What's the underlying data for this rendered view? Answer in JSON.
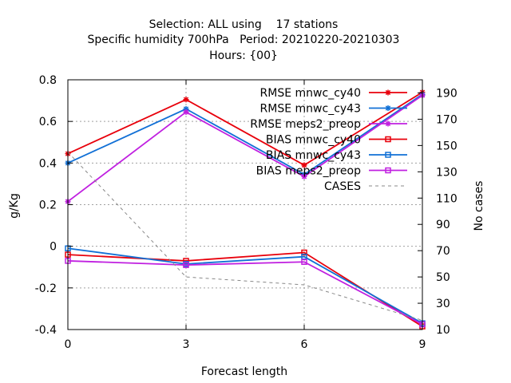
{
  "chart_data": {
    "type": "line",
    "title_lines": [
      "Selection: ALL using    17 stations",
      "Specific humidity 700hPa   Period: 20210220-20210303",
      "Hours: {00}"
    ],
    "xlabel": "Forecast length",
    "ylabel": "g/Kg",
    "y2label": "No cases",
    "x": [
      0,
      3,
      6,
      9
    ],
    "xlim": [
      0,
      9
    ],
    "ylim": [
      -0.4,
      0.8
    ],
    "y2lim": [
      10,
      200
    ],
    "xticks": [
      "0",
      "3",
      "6",
      "9"
    ],
    "yticks": [
      "0.8",
      "0.6",
      "0.4",
      "0.2",
      "0",
      "-0.2",
      "-0.4"
    ],
    "ytick_values": [
      0.8,
      0.6,
      0.4,
      0.2,
      0,
      -0.2,
      -0.4
    ],
    "y2ticks": [
      "190",
      "170",
      "150",
      "130",
      "110",
      "90",
      "70",
      "50",
      "30",
      "10"
    ],
    "y2tick_values": [
      190,
      170,
      150,
      130,
      110,
      90,
      70,
      50,
      30,
      10
    ],
    "grid": true,
    "legend_position": "top-right",
    "series": [
      {
        "name": "RMSE mnwc_cy40",
        "values": [
          0.445,
          0.705,
          0.39,
          0.74
        ],
        "color": "#e8000b",
        "marker": "star",
        "dash": false,
        "axis": "y1"
      },
      {
        "name": "RMSE mnwc_cy43",
        "values": [
          0.4,
          0.66,
          0.345,
          0.73
        ],
        "color": "#1170d6",
        "marker": "star",
        "dash": false,
        "axis": "y1"
      },
      {
        "name": "RMSE meps2_preop",
        "values": [
          0.215,
          0.645,
          0.335,
          0.725
        ],
        "color": "#c020e0",
        "marker": "star",
        "dash": false,
        "axis": "y1"
      },
      {
        "name": "BIAS mnwc_cy40",
        "values": [
          -0.04,
          -0.07,
          -0.03,
          -0.385
        ],
        "color": "#e8000b",
        "marker": "square",
        "dash": false,
        "axis": "y1"
      },
      {
        "name": "BIAS mnwc_cy43",
        "values": [
          -0.01,
          -0.085,
          -0.05,
          -0.37
        ],
        "color": "#1170d6",
        "marker": "square",
        "dash": false,
        "axis": "y1"
      },
      {
        "name": "BIAS meps2_preop",
        "values": [
          -0.07,
          -0.09,
          -0.075,
          -0.375
        ],
        "color": "#c020e0",
        "marker": "square",
        "dash": false,
        "axis": "y1"
      },
      {
        "name": "CASES",
        "values": [
          145,
          50,
          44,
          17
        ],
        "color": "#888888",
        "marker": "none",
        "dash": true,
        "axis": "y2"
      }
    ]
  }
}
